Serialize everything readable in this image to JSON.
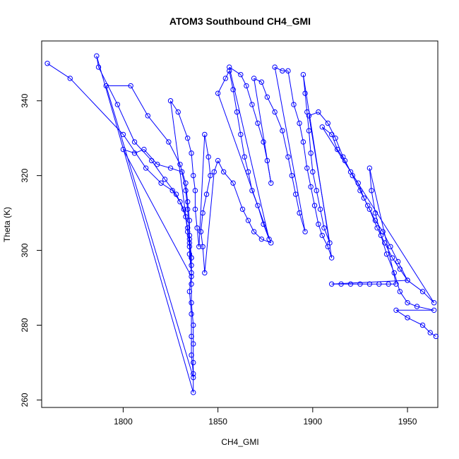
{
  "chart_data": {
    "type": "line",
    "title": "ATOM3 Southbound CH4_GMI",
    "xlabel": "CH4_GMI",
    "ylabel": "Theta (K)",
    "xlim": [
      1757,
      1966
    ],
    "ylim": [
      258,
      356
    ],
    "xticks": [
      1800,
      1850,
      1900,
      1950
    ],
    "yticks": [
      260,
      280,
      300,
      320,
      340
    ],
    "grid": false,
    "legend": "none",
    "color": "#0000ff",
    "marker": "open-circle",
    "series": [
      {
        "points": [
          [
            1760,
            350
          ],
          [
            1772,
            346
          ],
          [
            1800,
            331
          ],
          [
            1812,
            322
          ],
          [
            1820,
            318
          ],
          [
            1826,
            316
          ],
          [
            1830,
            313
          ],
          [
            1833,
            309
          ],
          [
            1834,
            305
          ],
          [
            1835,
            302
          ],
          [
            1835,
            299
          ],
          [
            1836,
            294
          ],
          [
            1835,
            289
          ],
          [
            1836,
            283
          ],
          [
            1836,
            277
          ],
          [
            1836,
            272
          ],
          [
            1837,
            267
          ],
          [
            1837,
            262
          ],
          [
            1786,
            352
          ],
          [
            1787,
            349
          ],
          [
            1797,
            339
          ],
          [
            1806,
            329
          ],
          [
            1815,
            324
          ],
          [
            1822,
            319
          ],
          [
            1828,
            315
          ],
          [
            1832,
            311
          ],
          [
            1834,
            306
          ],
          [
            1835,
            301
          ],
          [
            1836,
            296
          ],
          [
            1836,
            291
          ],
          [
            1836,
            286
          ],
          [
            1837,
            280
          ],
          [
            1837,
            275
          ],
          [
            1837,
            270
          ],
          [
            1837,
            266
          ],
          [
            1791,
            344
          ],
          [
            1804,
            344
          ],
          [
            1813,
            336
          ],
          [
            1824,
            329
          ],
          [
            1830,
            323
          ],
          [
            1833,
            318
          ],
          [
            1834,
            313
          ],
          [
            1835,
            308
          ],
          [
            1835,
            303
          ],
          [
            1836,
            298
          ],
          [
            1836,
            293
          ],
          [
            1800,
            327
          ],
          [
            1806,
            326
          ],
          [
            1811,
            327
          ],
          [
            1818,
            323
          ],
          [
            1825,
            322
          ],
          [
            1831,
            321
          ],
          [
            1833,
            316
          ],
          [
            1834,
            311
          ],
          [
            1835,
            304
          ],
          [
            1836,
            298
          ],
          [
            1825,
            340
          ],
          [
            1829,
            337
          ],
          [
            1834,
            330
          ],
          [
            1836,
            326
          ],
          [
            1837,
            320
          ],
          [
            1838,
            316
          ],
          [
            1838,
            311
          ],
          [
            1839,
            306
          ],
          [
            1840,
            301
          ],
          [
            1843,
            331
          ],
          [
            1845,
            325
          ],
          [
            1846,
            320
          ],
          [
            1844,
            315
          ],
          [
            1842,
            310
          ],
          [
            1841,
            305
          ],
          [
            1842,
            301
          ],
          [
            1843,
            294
          ],
          [
            1848,
            321
          ],
          [
            1850,
            324
          ],
          [
            1853,
            321
          ],
          [
            1858,
            318
          ],
          [
            1863,
            311
          ],
          [
            1866,
            308
          ],
          [
            1869,
            305
          ],
          [
            1873,
            303
          ],
          [
            1878,
            302
          ],
          [
            1850,
            342
          ],
          [
            1854,
            346
          ],
          [
            1856,
            348
          ],
          [
            1858,
            343
          ],
          [
            1860,
            337
          ],
          [
            1862,
            331
          ],
          [
            1864,
            325
          ],
          [
            1866,
            321
          ],
          [
            1868,
            316
          ],
          [
            1871,
            312
          ],
          [
            1874,
            307
          ],
          [
            1877,
            303
          ],
          [
            1856,
            349
          ],
          [
            1862,
            347
          ],
          [
            1865,
            344
          ],
          [
            1868,
            339
          ],
          [
            1871,
            334
          ],
          [
            1874,
            329
          ],
          [
            1876,
            324
          ],
          [
            1878,
            318
          ],
          [
            1869,
            346
          ],
          [
            1873,
            345
          ],
          [
            1876,
            341
          ],
          [
            1880,
            337
          ],
          [
            1884,
            332
          ],
          [
            1887,
            325
          ],
          [
            1889,
            320
          ],
          [
            1891,
            315
          ],
          [
            1893,
            310
          ],
          [
            1896,
            305
          ],
          [
            1880,
            349
          ],
          [
            1884,
            348
          ],
          [
            1887,
            348
          ],
          [
            1890,
            339
          ],
          [
            1893,
            334
          ],
          [
            1895,
            329
          ],
          [
            1897,
            322
          ],
          [
            1899,
            317
          ],
          [
            1901,
            312
          ],
          [
            1903,
            307
          ],
          [
            1905,
            304
          ],
          [
            1908,
            301
          ],
          [
            1910,
            298
          ],
          [
            1895,
            347
          ],
          [
            1896,
            342
          ],
          [
            1897,
            337
          ],
          [
            1898,
            332
          ],
          [
            1899,
            326
          ],
          [
            1900,
            321
          ],
          [
            1902,
            316
          ],
          [
            1904,
            311
          ],
          [
            1906,
            306
          ],
          [
            1909,
            302
          ],
          [
            1898,
            336
          ],
          [
            1903,
            337
          ],
          [
            1908,
            334
          ],
          [
            1912,
            330
          ],
          [
            1916,
            325
          ],
          [
            1920,
            321
          ],
          [
            1924,
            318
          ],
          [
            1927,
            314
          ],
          [
            1930,
            311
          ],
          [
            1934,
            306
          ],
          [
            1938,
            302
          ],
          [
            1942,
            298
          ],
          [
            1946,
            295
          ],
          [
            1950,
            292
          ],
          [
            1958,
            289
          ],
          [
            1964,
            286
          ],
          [
            1905,
            333
          ],
          [
            1910,
            331
          ],
          [
            1913,
            327
          ],
          [
            1917,
            324
          ],
          [
            1921,
            320
          ],
          [
            1925,
            316
          ],
          [
            1929,
            312
          ],
          [
            1933,
            308
          ],
          [
            1937,
            305
          ],
          [
            1941,
            301
          ],
          [
            1945,
            297
          ],
          [
            1950,
            292
          ],
          [
            1910,
            291
          ],
          [
            1915,
            291
          ],
          [
            1920,
            291
          ],
          [
            1925,
            291
          ],
          [
            1930,
            291
          ],
          [
            1935,
            291
          ],
          [
            1940,
            291
          ],
          [
            1944,
            291
          ],
          [
            1930,
            322
          ],
          [
            1931,
            316
          ],
          [
            1933,
            310
          ],
          [
            1936,
            304
          ],
          [
            1939,
            299
          ],
          [
            1943,
            294
          ],
          [
            1946,
            289
          ],
          [
            1950,
            286
          ],
          [
            1955,
            285
          ],
          [
            1964,
            284
          ],
          [
            1944,
            284
          ],
          [
            1950,
            282
          ],
          [
            1958,
            280
          ],
          [
            1962,
            278
          ],
          [
            1965,
            277
          ]
        ]
      }
    ]
  }
}
